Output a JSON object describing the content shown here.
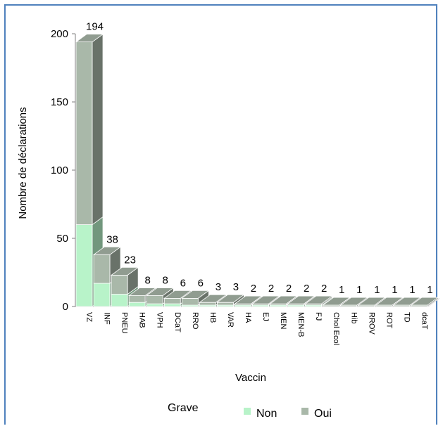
{
  "chart_data": {
    "type": "bar",
    "stacked": true,
    "style": "3d",
    "xlabel": "Vaccin",
    "ylabel": "Nombre de déclarations",
    "ylim": [
      0,
      200
    ],
    "yticks": [
      "0",
      "50",
      "100",
      "150",
      "200"
    ],
    "categories": [
      "VZ",
      "INF",
      "PNEU",
      "HAB",
      "VPH",
      "DCaT",
      "RRO",
      "HB",
      "VAR",
      "HA",
      "EJ",
      "MEN",
      "MEN-B",
      "FJ",
      "Chol Ecol",
      "Hib",
      "RROV",
      "ROT",
      "TD",
      "dcaT"
    ],
    "totals": [
      194,
      38,
      23,
      8,
      8,
      6,
      6,
      3,
      3,
      2,
      2,
      2,
      2,
      2,
      1,
      1,
      1,
      1,
      1,
      1
    ],
    "series": [
      {
        "name": "Non",
        "color": "#b8f3c9",
        "values": [
          60,
          17,
          9,
          3,
          2,
          2,
          1,
          1,
          1,
          1,
          1,
          1,
          1,
          1,
          0,
          0,
          0,
          0,
          0,
          0
        ]
      },
      {
        "name": "Oui",
        "color": "#a9b8a9",
        "values": [
          134,
          21,
          14,
          5,
          6,
          4,
          5,
          2,
          2,
          1,
          1,
          1,
          1,
          1,
          1,
          1,
          1,
          1,
          1,
          1
        ]
      }
    ],
    "legend": {
      "title": "Grave",
      "position": "bottom"
    },
    "grid": false
  }
}
